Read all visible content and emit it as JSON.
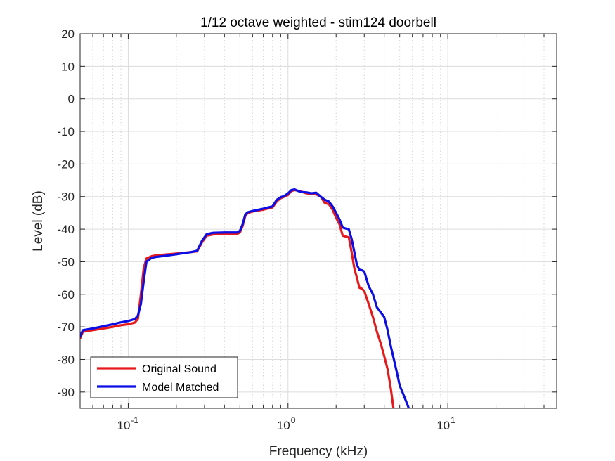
{
  "chart_data": {
    "type": "line",
    "title": "1/12 octave weighted - stim124 doorbell",
    "xlabel": "Frequency (kHz)",
    "ylabel": "Level (dB)",
    "xscale": "log",
    "xlim": [
      0.05,
      48
    ],
    "ylim": [
      -95,
      20
    ],
    "xticks": [
      {
        "value": 0.1,
        "base": "10",
        "exp": "-1"
      },
      {
        "value": 1,
        "base": "10",
        "exp": "0"
      },
      {
        "value": 10,
        "base": "10",
        "exp": "1"
      }
    ],
    "yticks": [
      20,
      10,
      0,
      -10,
      -20,
      -30,
      -40,
      -50,
      -60,
      -70,
      -80,
      -90
    ],
    "grid": true,
    "minor_grid": true,
    "legend_location": "bottom-left",
    "series": [
      {
        "name": "Original Sound",
        "color": "#e8191b",
        "x": [
          0.05,
          0.052,
          0.06,
          0.07,
          0.08,
          0.09,
          0.1,
          0.11,
          0.115,
          0.12,
          0.125,
          0.13,
          0.14,
          0.15,
          0.17,
          0.2,
          0.25,
          0.27,
          0.29,
          0.31,
          0.34,
          0.4,
          0.48,
          0.5,
          0.52,
          0.54,
          0.56,
          0.6,
          0.7,
          0.8,
          0.85,
          0.9,
          0.95,
          1.0,
          1.05,
          1.1,
          1.2,
          1.3,
          1.4,
          1.5,
          1.6,
          1.7,
          1.8,
          1.9,
          2.0,
          2.1,
          2.2,
          2.3,
          2.4,
          2.5,
          2.6,
          2.7,
          2.8,
          2.9,
          3.0,
          3.2,
          3.4,
          3.6,
          3.8,
          4.0,
          4.2,
          4.4,
          4.6
        ],
        "y": [
          -73.5,
          -71.5,
          -71,
          -70.5,
          -70,
          -69.5,
          -69.2,
          -68.7,
          -67.5,
          -60,
          -52,
          -49,
          -48.3,
          -48,
          -47.8,
          -47.5,
          -47,
          -46.8,
          -44,
          -42,
          -41.6,
          -41.5,
          -41.5,
          -41,
          -39,
          -36,
          -35,
          -34.6,
          -34,
          -33.3,
          -31.5,
          -30.5,
          -30,
          -29.5,
          -28.3,
          -28,
          -28.4,
          -29,
          -29.2,
          -29.3,
          -30,
          -32,
          -32.3,
          -34,
          -36.5,
          -38.5,
          -42,
          -42.3,
          -42.5,
          -47,
          -52,
          -55,
          -58,
          -58.3,
          -59,
          -63,
          -67,
          -71.5,
          -75,
          -79,
          -83,
          -89,
          -96
        ]
      },
      {
        "name": "Model Matched",
        "color": "#0b0ee6",
        "x": [
          0.05,
          0.052,
          0.06,
          0.07,
          0.08,
          0.09,
          0.1,
          0.11,
          0.115,
          0.12,
          0.125,
          0.13,
          0.14,
          0.15,
          0.17,
          0.2,
          0.25,
          0.27,
          0.29,
          0.31,
          0.34,
          0.4,
          0.48,
          0.5,
          0.52,
          0.54,
          0.56,
          0.6,
          0.7,
          0.8,
          0.85,
          0.9,
          0.95,
          1.0,
          1.05,
          1.1,
          1.2,
          1.3,
          1.4,
          1.5,
          1.6,
          1.7,
          1.8,
          1.9,
          2.0,
          2.1,
          2.2,
          2.3,
          2.4,
          2.5,
          2.6,
          2.7,
          2.8,
          2.9,
          3.0,
          3.2,
          3.4,
          3.6,
          3.8,
          4.0,
          4.2,
          4.4,
          4.6,
          4.8,
          5.0,
          5.3,
          5.6,
          5.8
        ],
        "y": [
          -73,
          -71,
          -70.5,
          -69.8,
          -69.2,
          -68.6,
          -68.2,
          -67.6,
          -66.5,
          -63,
          -56,
          -50,
          -48.8,
          -48.5,
          -48.2,
          -47.7,
          -47,
          -46.6,
          -43.5,
          -41.5,
          -41.1,
          -41,
          -41,
          -40.5,
          -38.5,
          -35.5,
          -34.8,
          -34.4,
          -33.7,
          -33,
          -31,
          -30.2,
          -29.8,
          -29,
          -28,
          -27.8,
          -28.6,
          -28.7,
          -29,
          -28.8,
          -30,
          -31,
          -31.5,
          -33,
          -35,
          -37,
          -39.5,
          -39.8,
          -40,
          -43,
          -47,
          -51,
          -52.5,
          -52.6,
          -53,
          -57.5,
          -60,
          -64,
          -65.5,
          -67,
          -71,
          -76,
          -80,
          -84,
          -88,
          -91,
          -94,
          -96
        ]
      }
    ]
  }
}
